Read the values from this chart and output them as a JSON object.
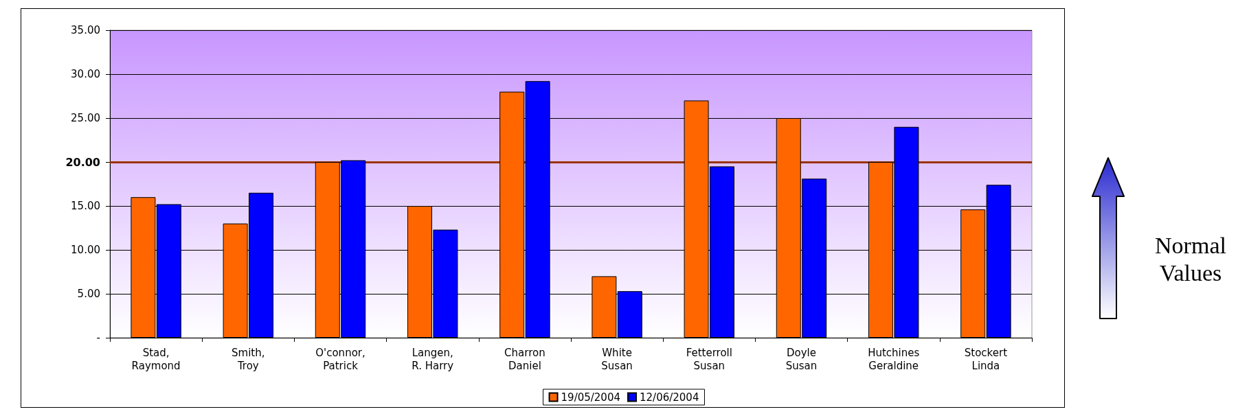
{
  "chart_data": {
    "type": "bar",
    "categories": [
      "Stad,\nRaymond",
      "Smith,\nTroy",
      "O'connor,\nPatrick",
      "Langen,\nR. Harry",
      "Charron\nDaniel",
      "White\nSusan",
      "Fetterroll\nSusan",
      "Doyle\nSusan",
      "Hutchines\nGeraldine",
      "Stockert\nLinda"
    ],
    "series": [
      {
        "name": "19/05/2004",
        "color": "#ff6600",
        "values": [
          16,
          13,
          20,
          15,
          28,
          7,
          27,
          25,
          20,
          14.6
        ]
      },
      {
        "name": "12/06/2004",
        "color": "#0000ff",
        "values": [
          15.2,
          16.5,
          20.2,
          12.3,
          29.2,
          5.3,
          19.5,
          18.1,
          24,
          17.4
        ]
      }
    ],
    "ylim": [
      0,
      35
    ],
    "yticks": [
      {
        "value": 0,
        "label": "-"
      },
      {
        "value": 5,
        "label": "5.00"
      },
      {
        "value": 10,
        "label": "10.00"
      },
      {
        "value": 15,
        "label": "15.00"
      },
      {
        "value": 20,
        "label": "20.00"
      },
      {
        "value": 25,
        "label": "25.00"
      },
      {
        "value": 30,
        "label": "30.00"
      },
      {
        "value": 35,
        "label": "35.00"
      }
    ],
    "grid": "y",
    "legend": "bottom",
    "ref_lines": [
      {
        "axis": "y",
        "value": 20,
        "color": "#993300"
      }
    ],
    "annotations": [
      "Normal\nValues"
    ]
  }
}
